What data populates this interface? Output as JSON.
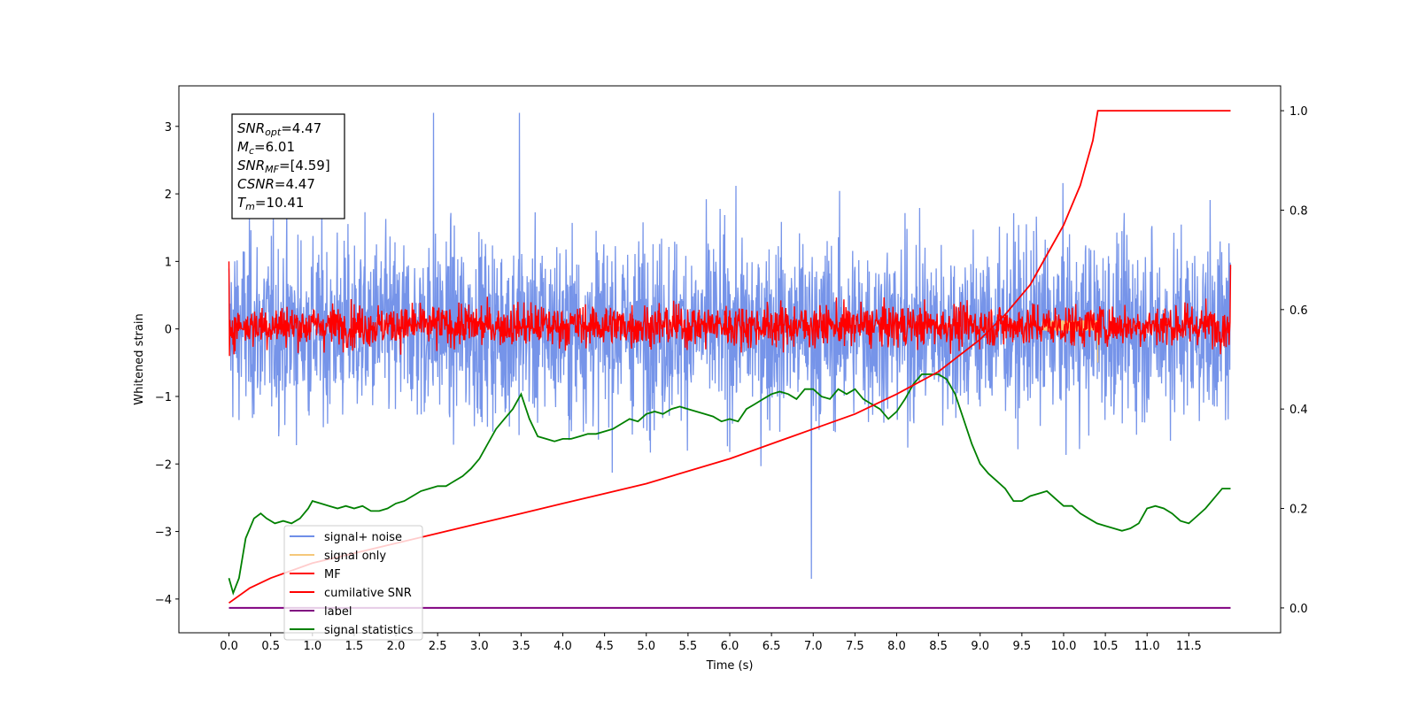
{
  "chart_data": {
    "type": "line",
    "title": "",
    "xlabel": "Time (s)",
    "ylabel": "Whitened strain",
    "xlim": [
      -0.6,
      12.6
    ],
    "ylim": [
      -4.5,
      3.6
    ],
    "y2lim": [
      -0.05,
      1.05
    ],
    "grid": false,
    "legend_position": "lower-left",
    "x_ticks": [
      "0.0",
      "0.5",
      "1.0",
      "1.5",
      "2.0",
      "2.5",
      "3.0",
      "3.5",
      "4.0",
      "4.5",
      "5.0",
      "5.5",
      "6.0",
      "6.5",
      "7.0",
      "7.5",
      "8.0",
      "8.5",
      "9.0",
      "9.5",
      "10.0",
      "10.5",
      "11.0",
      "11.5"
    ],
    "y_ticks": [
      "3",
      "2",
      "1",
      "0",
      "−1",
      "−2",
      "−3",
      "−4"
    ],
    "y2_ticks": [
      "1.0",
      "0.8",
      "0.6",
      "0.4",
      "0.2",
      "0.0"
    ],
    "annotation": [
      {
        "base": "SNR",
        "sub": "opt",
        "value": "=4.47"
      },
      {
        "base": "M",
        "sub": "c",
        "value": "=6.01"
      },
      {
        "base": "SNR",
        "sub": "MF",
        "value": "=[4.59]"
      },
      {
        "base": "CSNR",
        "sub": "",
        "value": "=4.47"
      },
      {
        "base": "T",
        "sub": "m",
        "value": "=10.41"
      }
    ],
    "series": [
      {
        "name": "signal+ noise",
        "color": "#6f8ee8",
        "axis": "left",
        "description": "noise band roughly ±2 whitened strain, spikes up to 3.2 and down to -4.1 near t=7.0"
      },
      {
        "name": "signal only",
        "color": "#f5c87a",
        "axis": "left",
        "description": "small chirp visible near t≈9.8–10.4 around 0.1, dip to -0.5 at t≈10.4"
      },
      {
        "name": "MF",
        "color": "#ff0000",
        "axis": "left",
        "description": "matched filter output noise band roughly -0.3 to 0.5, peak 1.0 at t=0"
      },
      {
        "name": "cumilative SNR",
        "color": "#ff0000",
        "axis": "right",
        "x": [
          0.0,
          0.25,
          0.5,
          1.0,
          1.5,
          2.0,
          2.5,
          3.0,
          3.5,
          4.0,
          4.5,
          5.0,
          5.5,
          6.0,
          6.5,
          7.0,
          7.5,
          8.0,
          8.5,
          9.0,
          9.3,
          9.6,
          9.8,
          10.0,
          10.2,
          10.35,
          10.41,
          12.0
        ],
        "values": [
          0.01,
          0.04,
          0.06,
          0.09,
          0.11,
          0.13,
          0.15,
          0.17,
          0.19,
          0.21,
          0.23,
          0.25,
          0.275,
          0.3,
          0.33,
          0.36,
          0.39,
          0.43,
          0.475,
          0.54,
          0.59,
          0.65,
          0.71,
          0.77,
          0.85,
          0.94,
          1.0,
          1.0
        ]
      },
      {
        "name": "label",
        "color": "#800080",
        "axis": "right",
        "x": [
          0.0,
          12.0
        ],
        "values": [
          0.0,
          0.0
        ]
      },
      {
        "name": "signal statistics",
        "color": "#008000",
        "axis": "right",
        "x": [
          0.0,
          0.05,
          0.12,
          0.2,
          0.3,
          0.38,
          0.45,
          0.55,
          0.65,
          0.75,
          0.85,
          0.95,
          1.0,
          1.1,
          1.2,
          1.3,
          1.4,
          1.5,
          1.6,
          1.7,
          1.8,
          1.9,
          2.0,
          2.1,
          2.2,
          2.3,
          2.4,
          2.5,
          2.6,
          2.7,
          2.8,
          2.9,
          3.0,
          3.1,
          3.2,
          3.3,
          3.4,
          3.5,
          3.6,
          3.7,
          3.8,
          3.9,
          4.0,
          4.1,
          4.2,
          4.3,
          4.4,
          4.5,
          4.6,
          4.7,
          4.8,
          4.9,
          5.0,
          5.1,
          5.2,
          5.3,
          5.4,
          5.5,
          5.6,
          5.7,
          5.8,
          5.9,
          6.0,
          6.1,
          6.2,
          6.3,
          6.4,
          6.5,
          6.6,
          6.7,
          6.8,
          6.9,
          7.0,
          7.1,
          7.2,
          7.3,
          7.4,
          7.5,
          7.6,
          7.7,
          7.8,
          7.9,
          8.0,
          8.1,
          8.2,
          8.3,
          8.4,
          8.5,
          8.6,
          8.7,
          8.8,
          8.9,
          9.0,
          9.1,
          9.2,
          9.3,
          9.4,
          9.5,
          9.6,
          9.7,
          9.8,
          9.9,
          10.0,
          10.1,
          10.2,
          10.3,
          10.4,
          10.5,
          10.6,
          10.7,
          10.8,
          10.9,
          11.0,
          11.1,
          11.2,
          11.3,
          11.4,
          11.5,
          11.6,
          11.7,
          11.8,
          11.9,
          12.0
        ],
        "values": [
          0.06,
          0.03,
          0.06,
          0.14,
          0.18,
          0.19,
          0.18,
          0.17,
          0.175,
          0.17,
          0.18,
          0.2,
          0.215,
          0.21,
          0.205,
          0.2,
          0.205,
          0.2,
          0.205,
          0.195,
          0.195,
          0.2,
          0.21,
          0.215,
          0.225,
          0.235,
          0.24,
          0.245,
          0.245,
          0.255,
          0.265,
          0.28,
          0.3,
          0.33,
          0.36,
          0.38,
          0.4,
          0.43,
          0.38,
          0.345,
          0.34,
          0.335,
          0.34,
          0.34,
          0.345,
          0.35,
          0.35,
          0.355,
          0.36,
          0.37,
          0.38,
          0.375,
          0.39,
          0.395,
          0.39,
          0.4,
          0.405,
          0.4,
          0.395,
          0.39,
          0.385,
          0.375,
          0.38,
          0.375,
          0.4,
          0.41,
          0.42,
          0.43,
          0.435,
          0.43,
          0.42,
          0.44,
          0.44,
          0.425,
          0.42,
          0.44,
          0.43,
          0.44,
          0.42,
          0.41,
          0.4,
          0.38,
          0.395,
          0.42,
          0.45,
          0.47,
          0.47,
          0.47,
          0.46,
          0.43,
          0.38,
          0.33,
          0.29,
          0.27,
          0.255,
          0.24,
          0.215,
          0.215,
          0.225,
          0.23,
          0.235,
          0.22,
          0.205,
          0.205,
          0.19,
          0.18,
          0.17,
          0.165,
          0.16,
          0.155,
          0.16,
          0.17,
          0.2,
          0.205,
          0.2,
          0.19,
          0.175,
          0.17,
          0.185,
          0.2,
          0.22,
          0.24,
          0.24
        ]
      }
    ]
  }
}
